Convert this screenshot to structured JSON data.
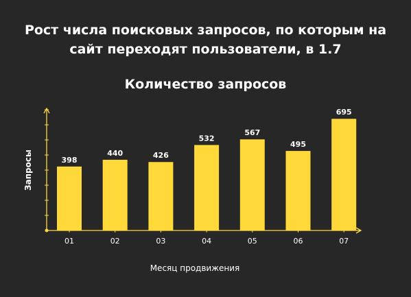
{
  "chart_data": {
    "type": "bar",
    "title": "Рост числа поисковых запросов, по которым на\nсайт переходят пользователи, в 1.7",
    "subtitle": "Количество запросов",
    "xlabel": "Месяц продвижения",
    "ylabel": "Запросы",
    "categories": [
      "01",
      "02",
      "03",
      "04",
      "05",
      "06",
      "07"
    ],
    "values": [
      398,
      440,
      426,
      532,
      567,
      495,
      695
    ],
    "ylim": [
      0,
      760
    ],
    "grid": false,
    "legend": "none",
    "colors": {
      "bar": "#FFD83A",
      "axis": "#FFD83A",
      "background": "#272727",
      "text": "#FFFFFF"
    }
  }
}
